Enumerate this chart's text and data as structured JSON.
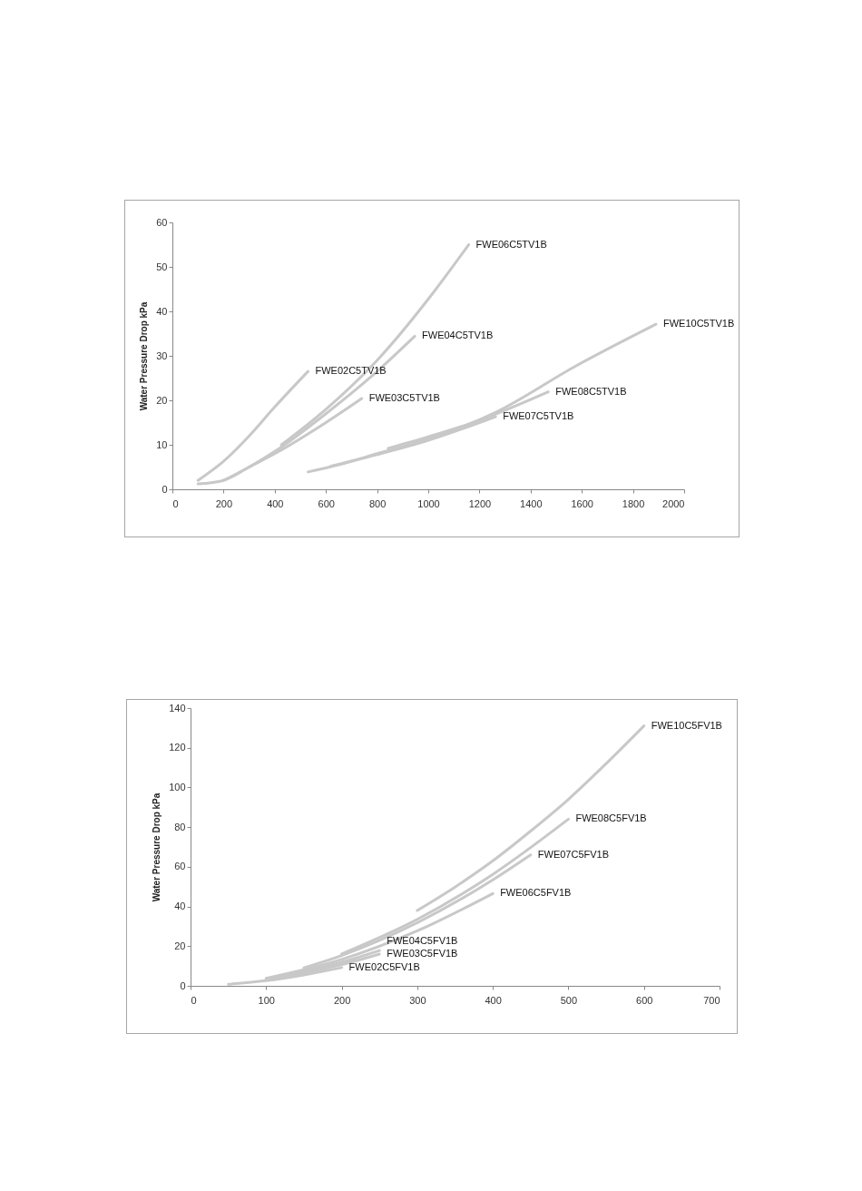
{
  "chart_data": [
    {
      "type": "line",
      "ylabel": "Water Pressure Drop kPa",
      "xlim": [
        0,
        2000
      ],
      "ylim": [
        0,
        60
      ],
      "xticks": [
        0,
        200,
        400,
        600,
        800,
        1000,
        1200,
        1400,
        1600,
        1800,
        2000
      ],
      "yticks": [
        0,
        10,
        20,
        30,
        40,
        50,
        60
      ],
      "grid": false,
      "legend": false,
      "series": [
        {
          "name": "FWE02C5TV1B",
          "color": "#c8c8c8",
          "x": [
            100,
            200,
            300,
            400,
            530
          ],
          "values": [
            2,
            6.3,
            12,
            18.5,
            26.5
          ]
        },
        {
          "name": "FWE03C5TV1B",
          "color": "#c8c8c8",
          "x": [
            100,
            200,
            300,
            400,
            600,
            740
          ],
          "values": [
            1.2,
            2,
            5,
            8,
            15,
            20.4
          ]
        },
        {
          "name": "FWE04C5TV1B",
          "color": "#c8c8c8",
          "x": [
            200,
            300,
            400,
            600,
            800,
            947
          ],
          "values": [
            2,
            5,
            8.5,
            17,
            26.5,
            34.4
          ]
        },
        {
          "name": "FWE06C5TV1B",
          "color": "#c8c8c8",
          "x": [
            426,
            600,
            800,
            1030,
            1158
          ],
          "values": [
            10,
            18,
            29,
            45,
            55
          ]
        },
        {
          "name": "FWE07C5TV1B",
          "color": "#c8c8c8",
          "x": [
            620,
            800,
            1000,
            1263
          ],
          "values": [
            5.2,
            7.8,
            11,
            16.3
          ]
        },
        {
          "name": "FWE08C5TV1B",
          "color": "#c8c8c8",
          "x": [
            843,
            1000,
            1200,
            1469
          ],
          "values": [
            9.2,
            11.8,
            15.5,
            21.9
          ]
        },
        {
          "name": "FWE10C5TV1B",
          "color": "#c8c8c8",
          "x": [
            530,
            650,
            800,
            1000,
            1270,
            1570,
            1890
          ],
          "values": [
            3.9,
            5.5,
            8,
            11.3,
            17.5,
            27.5,
            37.1
          ]
        }
      ]
    },
    {
      "type": "line",
      "ylabel": "Water Pressure Drop kPa",
      "xlim": [
        0,
        700
      ],
      "ylim": [
        0,
        140
      ],
      "xticks": [
        0,
        100,
        200,
        300,
        400,
        500,
        600,
        700
      ],
      "yticks": [
        0,
        20,
        40,
        60,
        80,
        100,
        120,
        140
      ],
      "grid": false,
      "legend": false,
      "series": [
        {
          "name": "FWE02C5FV1B",
          "color": "#c8c8c8",
          "x": [
            50,
            100,
            150,
            200
          ],
          "values": [
            0.8,
            2.6,
            5.5,
            9.2
          ]
        },
        {
          "name": "FWE03C5FV1B",
          "color": "#c8c8c8",
          "x": [
            100,
            150,
            200,
            250
          ],
          "values": [
            3.1,
            6.4,
            10.7,
            16
          ]
        },
        {
          "name": "FWE04C5FV1B",
          "color": "#c8c8c8",
          "x": [
            100,
            150,
            200,
            250
          ],
          "values": [
            3.4,
            7.1,
            11.9,
            17.8
          ]
        },
        {
          "name": "FWE06C5FV1B",
          "color": "#c8c8c8",
          "x": [
            100,
            200,
            300,
            400
          ],
          "values": [
            3.8,
            13.3,
            27.7,
            46.5
          ]
        },
        {
          "name": "FWE07C5FV1B",
          "color": "#c8c8c8",
          "x": [
            150,
            200,
            300,
            400,
            450
          ],
          "values": [
            9.1,
            15.3,
            31.8,
            53.4,
            66
          ]
        },
        {
          "name": "FWE08C5FV1B",
          "color": "#c8c8c8",
          "x": [
            200,
            300,
            400,
            500
          ],
          "values": [
            16.1,
            33.5,
            56.2,
            84
          ]
        },
        {
          "name": "FWE10C5FV1B",
          "color": "#c8c8c8",
          "x": [
            300,
            350,
            400,
            450,
            500,
            550,
            600
          ],
          "values": [
            38,
            49.8,
            63,
            78,
            94,
            112,
            131
          ]
        }
      ]
    }
  ]
}
